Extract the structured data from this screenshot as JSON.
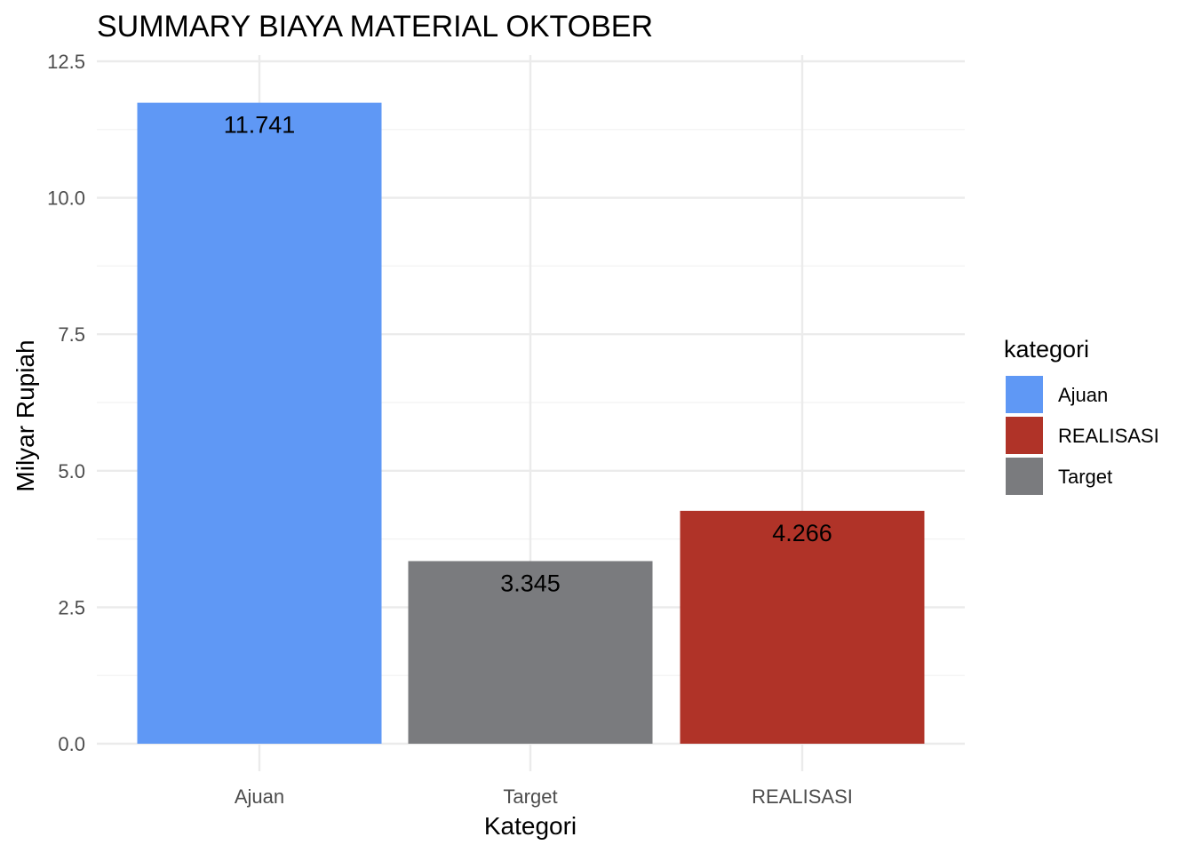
{
  "chart_data": {
    "type": "bar",
    "title": "SUMMARY BIAYA MATERIAL OKTOBER",
    "xlabel": "Kategori",
    "ylabel": "Milyar Rupiah",
    "categories": [
      "Ajuan",
      "Target",
      "REALISASI"
    ],
    "values": [
      11.741,
      3.345,
      4.266
    ],
    "value_labels": [
      "11.741",
      "3.345",
      "4.266"
    ],
    "bar_colors": [
      "#5f98f5",
      "#7a7b7e",
      "#b03328"
    ],
    "ylim": [
      0,
      12.5
    ],
    "y_ticks": [
      0,
      2.5,
      5,
      7.5,
      10,
      12.5
    ],
    "y_tick_labels": [
      "0.0",
      "2.5",
      "5.0",
      "7.5",
      "10.0",
      "12.5"
    ],
    "grid": true,
    "legend": {
      "title": "kategori",
      "placement": "right",
      "entries": [
        {
          "label": "Ajuan",
          "color": "#5f98f5"
        },
        {
          "label": "REALISASI",
          "color": "#b03328"
        },
        {
          "label": "Target",
          "color": "#7a7b7e"
        }
      ]
    }
  }
}
